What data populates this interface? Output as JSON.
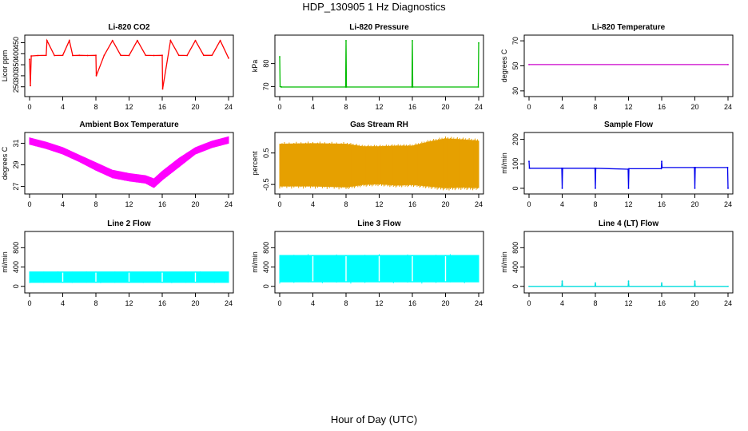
{
  "title": "HDP_130905  1 Hz Diagnostics",
  "xlabel": "Hour of Day (UTC)",
  "chart_data": [
    {
      "type": "line",
      "title": "Li-820 CO2",
      "ylabel": "Licor ppm",
      "xlim": [
        0,
        24
      ],
      "ylim": [
        220,
        470
      ],
      "xticks": [
        "0",
        "4",
        "8",
        "12",
        "16",
        "20",
        "24"
      ],
      "yticks": [
        "250",
        "300",
        "350",
        "400",
        "450"
      ],
      "color": "#ff0000",
      "series": [
        {
          "x": [
            0,
            0.1,
            0.2,
            1,
            2,
            2.1,
            3,
            4,
            4.8,
            5.2,
            6,
            7,
            8,
            8.05,
            9,
            10,
            11,
            12,
            13,
            14,
            15,
            16,
            16.05,
            17,
            18,
            19,
            20,
            21,
            22,
            23,
            24
          ],
          "y": [
            375,
            255,
            390,
            392,
            393,
            460,
            392,
            393,
            460,
            392,
            393,
            392,
            393,
            300,
            393,
            460,
            393,
            392,
            460,
            393,
            392,
            393,
            240,
            460,
            393,
            392,
            460,
            393,
            393,
            460,
            380
          ]
        }
      ]
    },
    {
      "type": "line",
      "title": "Li-820 Pressure",
      "ylabel": "kPa",
      "xlim": [
        0,
        24
      ],
      "ylim": [
        67,
        91
      ],
      "xticks": [
        "0",
        "4",
        "8",
        "12",
        "16",
        "20",
        "24"
      ],
      "yticks": [
        "70",
        "80"
      ],
      "color": "#00bb00",
      "series": [
        {
          "x": [
            0,
            0.05,
            0.2,
            7.95,
            8,
            8.05,
            15.95,
            16,
            16.05,
            23.95,
            24
          ],
          "y": [
            83,
            70,
            69.8,
            69.8,
            90,
            69.8,
            69.8,
            90,
            69.8,
            69.8,
            89
          ]
        }
      ]
    },
    {
      "type": "line",
      "title": "Li-820 Temperature",
      "ylabel": "degrees C",
      "xlim": [
        0,
        24
      ],
      "ylim": [
        28,
        72
      ],
      "xticks": [
        "0",
        "4",
        "8",
        "12",
        "16",
        "20",
        "24"
      ],
      "yticks": [
        "30",
        "50",
        "70"
      ],
      "color": "#cc00cc",
      "series": [
        {
          "x": [
            0,
            24
          ],
          "y": [
            51,
            51
          ]
        }
      ]
    },
    {
      "type": "area",
      "title": "Ambient Box Temperature",
      "ylabel": "degrees C",
      "xlim": [
        0,
        24
      ],
      "ylim": [
        26.6,
        31.7
      ],
      "xticks": [
        "0",
        "4",
        "8",
        "12",
        "16",
        "20",
        "24"
      ],
      "yticks": [
        "27",
        "29",
        "31"
      ],
      "color": "#ff00ff",
      "band": {
        "x": [
          0,
          2,
          4,
          6,
          8,
          10,
          12,
          14,
          15,
          16,
          18,
          20,
          22,
          24
        ],
        "upper": [
          31.5,
          31.1,
          30.6,
          29.9,
          29.2,
          28.5,
          28.2,
          28.0,
          27.7,
          28.4,
          29.6,
          30.6,
          31.2,
          31.6
        ],
        "lower": [
          30.9,
          30.5,
          30.0,
          29.3,
          28.5,
          27.8,
          27.5,
          27.3,
          26.9,
          27.6,
          28.8,
          30.0,
          30.6,
          31.0
        ]
      }
    },
    {
      "type": "area",
      "title": "Gas Stream RH",
      "ylabel": "percent",
      "xlim": [
        0,
        24
      ],
      "ylim": [
        -0.7,
        1.05
      ],
      "xticks": [
        "0",
        "4",
        "8",
        "12",
        "16",
        "20",
        "24"
      ],
      "yticks": [
        "-0.5",
        "0.5"
      ],
      "color": "#e6a000",
      "band": {
        "x": [
          0,
          4,
          8,
          10,
          12,
          14,
          16,
          18,
          20,
          22,
          24
        ],
        "upper": [
          0.78,
          0.8,
          0.78,
          0.7,
          0.7,
          0.72,
          0.72,
          0.85,
          0.95,
          0.92,
          0.88
        ],
        "lower": [
          -0.55,
          -0.55,
          -0.58,
          -0.5,
          -0.48,
          -0.52,
          -0.5,
          -0.55,
          -0.6,
          -0.58,
          -0.6
        ]
      }
    },
    {
      "type": "line",
      "title": "Sample Flow",
      "ylabel": "ml/min",
      "xlim": [
        0,
        24
      ],
      "ylim": [
        -10,
        215
      ],
      "xticks": [
        "0",
        "4",
        "8",
        "12",
        "16",
        "20",
        "24"
      ],
      "yticks": [
        "0",
        "100",
        "200"
      ],
      "color": "#0000ee",
      "series": [
        {
          "x": [
            0,
            0.05,
            0.1,
            3.95,
            4,
            4.05,
            7.95,
            8,
            8.05,
            11.95,
            12,
            12.05,
            15.95,
            16,
            16.05,
            19.95,
            20,
            20.05,
            23.95,
            24
          ],
          "y": [
            110,
            82,
            82,
            82,
            0,
            82,
            82,
            0,
            82,
            78,
            0,
            80,
            80,
            110,
            85,
            85,
            0,
            85,
            85,
            0
          ]
        }
      ]
    },
    {
      "type": "area",
      "title": "Line 2 Flow",
      "ylabel": "ml/min",
      "xlim": [
        0,
        24
      ],
      "ylim": [
        -70,
        1070
      ],
      "xticks": [
        "0",
        "4",
        "8",
        "12",
        "16",
        "20",
        "24"
      ],
      "yticks": [
        "0",
        "400",
        "800"
      ],
      "color": "#00ffff",
      "band": {
        "x": [
          0,
          24
        ],
        "upper": [
          300,
          300
        ],
        "lower": [
          80,
          80
        ]
      },
      "gaps": [
        4,
        8,
        12,
        16,
        20
      ]
    },
    {
      "type": "area",
      "title": "Line 3 Flow",
      "ylabel": "ml/min",
      "xlim": [
        0,
        24
      ],
      "ylim": [
        -70,
        1070
      ],
      "xticks": [
        "0",
        "4",
        "8",
        "12",
        "16",
        "20",
        "24"
      ],
      "yticks": [
        "0",
        "400",
        "800"
      ],
      "color": "#00ffff",
      "band": {
        "x": [
          0,
          24
        ],
        "upper": [
          640,
          640
        ],
        "lower": [
          90,
          90
        ]
      },
      "gaps": [
        4,
        8,
        12,
        16,
        20
      ]
    },
    {
      "type": "line",
      "title": "Line 4 (LT) Flow",
      "ylabel": "ml/min",
      "xlim": [
        0,
        24
      ],
      "ylim": [
        -70,
        1070
      ],
      "xticks": [
        "0",
        "4",
        "8",
        "12",
        "16",
        "20",
        "24"
      ],
      "yticks": [
        "0",
        "400",
        "800"
      ],
      "color": "#00dddd",
      "series": [
        {
          "x": [
            0,
            3.95,
            4,
            4.05,
            7.95,
            8,
            8.05,
            11.95,
            12,
            12.05,
            15.95,
            16,
            16.05,
            19.95,
            20,
            20.05,
            24
          ],
          "y": [
            0,
            0,
            110,
            0,
            0,
            70,
            0,
            0,
            110,
            0,
            0,
            70,
            0,
            0,
            110,
            0,
            0
          ]
        }
      ]
    }
  ]
}
